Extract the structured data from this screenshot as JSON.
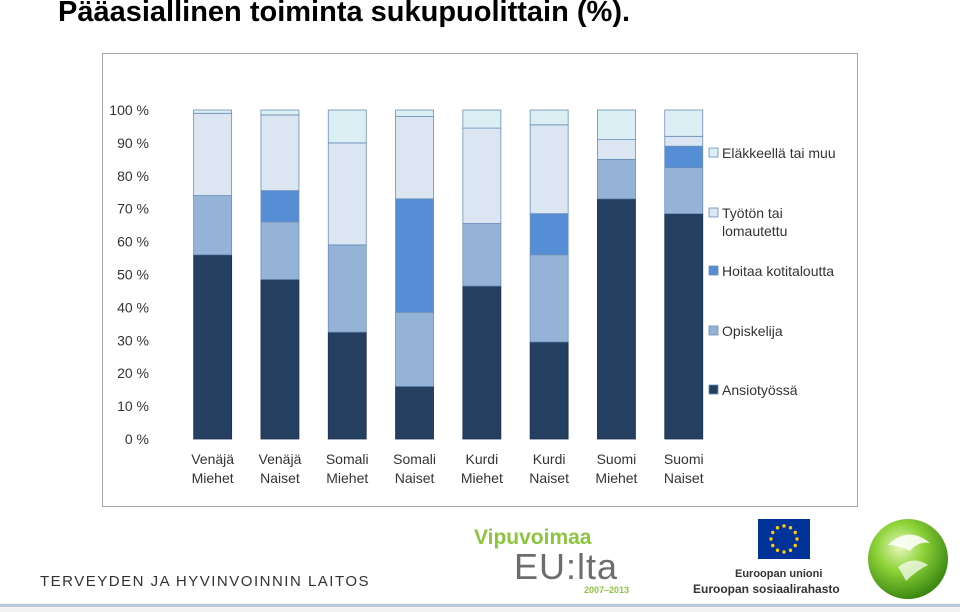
{
  "title": "Pääasiallinen toiminta sukupuolittain (%).",
  "chart_data": {
    "type": "bar",
    "stacked": true,
    "categories": [
      [
        "Venäjä",
        "Miehet"
      ],
      [
        "Venäjä",
        "Naiset"
      ],
      [
        "Somali",
        "Miehet"
      ],
      [
        "Somali",
        "Naiset"
      ],
      [
        "Kurdi",
        "Miehet"
      ],
      [
        "Kurdi",
        "Naiset"
      ],
      [
        "Suomi",
        "Miehet"
      ],
      [
        "Suomi",
        "Naiset"
      ]
    ],
    "series": [
      {
        "name": "Ansiotyössä",
        "color": "#243f60",
        "values": [
          56,
          48.5,
          32.5,
          16,
          46.5,
          29.5,
          73,
          68.5
        ]
      },
      {
        "name": "Opiskelija",
        "color": "#95b3d7",
        "values": [
          18,
          17.5,
          26.5,
          22.5,
          19,
          26.5,
          12,
          14
        ]
      },
      {
        "name": "Hoitaa kotitaloutta",
        "color": "#558ed5",
        "values": [
          0,
          9.5,
          0,
          34.5,
          0,
          12.5,
          0,
          6.5
        ]
      },
      {
        "name": "Työtön tai lomautettu",
        "color": "#dce6f2",
        "values": [
          25,
          23,
          31,
          25,
          29,
          27,
          6,
          3
        ]
      },
      {
        "name": "Eläkkeellä tai muu",
        "color": "#dbeef4",
        "values": [
          1,
          1.5,
          10,
          2,
          5.5,
          4.5,
          9,
          8
        ]
      }
    ],
    "legend_labels": [
      [
        "Eläkkeellä tai muu"
      ],
      [
        "Työtön tai",
        "lomautettu"
      ],
      [
        "Hoitaa kotitaloutta"
      ],
      [
        "Opiskelija"
      ],
      [
        "Ansiotyössä"
      ]
    ],
    "ylim": [
      0,
      100
    ],
    "yticks": [
      "0 %",
      "10 %",
      "20 %",
      "30 %",
      "40 %",
      "50 %",
      "60 %",
      "70 %",
      "80 %",
      "90 %",
      "100 %"
    ],
    "legend_position": "right",
    "grid": false
  },
  "footer": {
    "org_name": "TERVEYDEN JA HYVINVOINNIN LAITOS",
    "program_title": "Vipuvoimaa",
    "program_eu": "EU:lta",
    "program_years": "2007–2013",
    "eu_name": "Euroopan unioni",
    "eu_fund": "Euroopan sosiaalirahasto"
  }
}
